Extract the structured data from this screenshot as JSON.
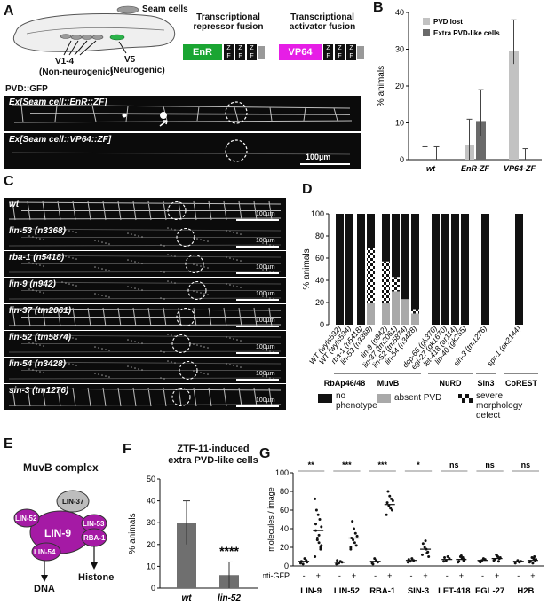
{
  "panels": {
    "a": "A",
    "b": "B",
    "c": "C",
    "d": "D",
    "e": "E",
    "f": "F",
    "g": "G"
  },
  "panelA": {
    "seam_cells": "Seam cells",
    "v14_line1": "V1-4",
    "v14_line2": "(Non-neurogenic)",
    "v5_line1": "V5",
    "v5_line2": "(Neurogenic)",
    "repressor_line1": "Transcriptional",
    "repressor_line2": "repressor fusion",
    "activator_line1": "Transcriptional",
    "activator_line2": "activator fusion",
    "enr": "EnR",
    "vp64": "VP64",
    "zf_z": "Z",
    "zf_f": "F",
    "pvd_gfp": "PVD::GFP",
    "micro1_label": "Ex[Seam cell::EnR::ZF]",
    "micro2_label": "Ex[Seam cell::VP64::ZF]",
    "scale": "100µm",
    "colors": {
      "enr": "#1aa532",
      "vp64": "#e61ee6",
      "v5": "#2bb34a",
      "zf": "#111111"
    }
  },
  "panelB": {
    "chart_data": {
      "type": "bar",
      "categories": [
        "wt",
        "EnR-ZF",
        "VP64-ZF"
      ],
      "series": [
        {
          "name": "PVD lost",
          "values": [
            0,
            4,
            29.5
          ],
          "err_low": [
            0,
            0,
            26
          ],
          "err_high": [
            3.5,
            11,
            38
          ],
          "color": "#c2c2c2"
        },
        {
          "name": "Extra PVD-like cells",
          "values": [
            0,
            10.5,
            0
          ],
          "err_low": [
            0,
            6.5,
            0
          ],
          "err_high": [
            3.5,
            19,
            3
          ],
          "color": "#6a6a6a"
        }
      ],
      "ylabel": "% animals",
      "ylim": [
        0,
        40
      ],
      "yticks": [
        0,
        10,
        20,
        30,
        40
      ]
    }
  },
  "panelC": {
    "strains": [
      "wt",
      "lin-53 (n3368)",
      "rba-1 (n5418)",
      "lin-9 (n942)",
      "lin-37 (tm2061)",
      "lin-52 (tm5874)",
      "lin-54 (n3428)",
      "sin-3 (tm1276)"
    ],
    "scale": "100µm"
  },
  "panelD": {
    "chart_data": {
      "type": "bar",
      "stacked": true,
      "categories": [
        "WT (wyIs592)",
        "WT (wyIs594)",
        "rba-1 (n5418)",
        "lin-53 (n3368)",
        "lin-9 (n942)",
        "lin-37 (tm2061)",
        "lin-52 (tm5874)",
        "lin-54 (n3428)",
        "dcp-66 (gk370)",
        "egl-27 (gk1670)",
        "let-418 (ar114)",
        "lin-40 (gk255)",
        "sin-3 (tm1276)",
        "spr-1 (ok2144)"
      ],
      "series": [
        {
          "name": "absent PVD",
          "values": [
            0,
            0,
            0,
            20,
            20,
            30,
            23,
            10,
            0,
            0,
            0,
            0,
            0,
            0
          ]
        },
        {
          "name": "severe morphology defect",
          "values": [
            0,
            0,
            0,
            49,
            37,
            13,
            0,
            4,
            0,
            0,
            0,
            0,
            0,
            0
          ]
        },
        {
          "name": "no phenotype",
          "values": [
            100,
            100,
            100,
            31,
            43,
            57,
            77,
            86,
            100,
            100,
            100,
            100,
            100,
            100
          ]
        }
      ],
      "ylabel": "% animals",
      "ylim": [
        0,
        100
      ],
      "yticks": [
        0,
        20,
        40,
        60,
        80,
        100
      ],
      "groups": [
        "RbAp46/48",
        "MuvB",
        "NuRD",
        "Sin3",
        "CoREST"
      ]
    },
    "legend": {
      "no_phenotype_1": "no",
      "no_phenotype_2": "phenotype",
      "absent": "absent PVD",
      "severe_1": "severe morphology",
      "severe_2": "defect"
    }
  },
  "panelE": {
    "title": "MuvB complex",
    "lin37": "LIN-37",
    "lin52": "LIN-52",
    "lin9": "LIN-9",
    "lin53": "LIN-53",
    "rba1": "RBA-1",
    "lin54": "LIN-54",
    "dna": "DNA",
    "histone": "Histone"
  },
  "panelF": {
    "title_line1": "ZTF-11-induced",
    "title_line2": "extra PVD-like cells",
    "stars": "****",
    "chart_data": {
      "type": "bar",
      "categories": [
        "wt",
        "lin-52"
      ],
      "values": [
        30,
        6
      ],
      "err_low": [
        20,
        0
      ],
      "err_high": [
        40,
        12
      ],
      "ylabel": "% animals",
      "ylim": [
        0,
        50
      ],
      "yticks": [
        0,
        10,
        20,
        30,
        40,
        50
      ]
    }
  },
  "panelG": {
    "chart_data": {
      "type": "scatter",
      "ylabel": "molecules / image",
      "ylim": [
        0,
        100
      ],
      "yticks": [
        0,
        20,
        40,
        60,
        80,
        100
      ],
      "proteins": [
        "LIN-9",
        "LIN-52",
        "RBA-1",
        "SIN-3",
        "LET-418",
        "EGL-27",
        "H2B"
      ],
      "significance": [
        "**",
        "***",
        "***",
        "*",
        "ns",
        "ns",
        "ns"
      ],
      "anti_gfp_label": "anti-GFP",
      "conditions": [
        "-",
        "+"
      ],
      "groups": [
        {
          "minus": [
            3,
            6,
            8,
            2,
            5,
            4
          ],
          "plus": [
            10,
            20,
            25,
            30,
            38,
            42,
            50,
            55,
            60,
            72,
            18,
            33,
            28,
            45,
            22
          ],
          "mean_minus": 5,
          "mean_plus": 38
        },
        {
          "minus": [
            2,
            4,
            5,
            3,
            6
          ],
          "plus": [
            18,
            22,
            25,
            28,
            30,
            32,
            35,
            40,
            48,
            20
          ],
          "mean_minus": 4,
          "mean_plus": 30
        },
        {
          "minus": [
            3,
            4,
            6,
            8,
            2
          ],
          "plus": [
            55,
            60,
            62,
            65,
            68,
            70,
            72,
            75,
            80
          ],
          "mean_minus": 5,
          "mean_plus": 66
        },
        {
          "minus": [
            4,
            6,
            8,
            5,
            7
          ],
          "plus": [
            12,
            15,
            18,
            20,
            24,
            10,
            14,
            27
          ],
          "mean_minus": 6,
          "mean_plus": 18
        },
        {
          "minus": [
            5,
            8,
            10,
            6,
            9
          ],
          "plus": [
            4,
            6,
            8,
            10,
            5,
            7,
            9,
            11
          ],
          "mean_minus": 7,
          "mean_plus": 7
        },
        {
          "minus": [
            5,
            7,
            8,
            6,
            4
          ],
          "plus": [
            6,
            8,
            10,
            12,
            7,
            9,
            5,
            11
          ],
          "mean_minus": 6,
          "mean_plus": 8
        },
        {
          "minus": [
            3,
            5,
            4,
            6
          ],
          "plus": [
            4,
            6,
            8,
            9,
            5,
            7,
            10,
            3
          ],
          "mean_minus": 5,
          "mean_plus": 6
        }
      ]
    }
  }
}
